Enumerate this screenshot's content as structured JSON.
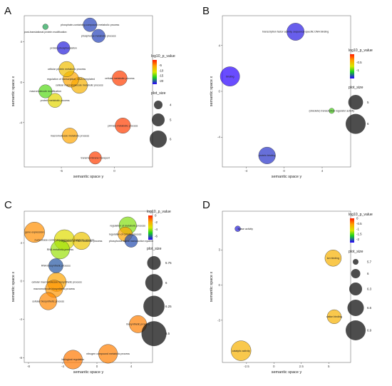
{
  "chart_data": [
    {
      "panel": "A",
      "type": "scatter",
      "xlabel": "semantic space y",
      "ylabel": "semantic space x",
      "xlim": [
        -8.5,
        3.6
      ],
      "ylim": [
        -8.4,
        6.6
      ],
      "xticks": [
        -5,
        0
      ],
      "yticks": [
        -4,
        0,
        4
      ],
      "color_legend": {
        "title": "log10_p_value",
        "ticks": [
          -5,
          -10,
          -15,
          -20
        ],
        "range": [
          -23,
          0
        ]
      },
      "size_legend": {
        "title": "plot_size",
        "ticks": [
          4,
          5,
          6
        ]
      },
      "points": [
        {
          "label": "phosphate-containing compound metabolic process",
          "x": -2.3,
          "y": 5.7,
          "size": 5.2,
          "color": -21,
          "lx": -2.3,
          "ly": 5.7
        },
        {
          "label": "phosphorus metabolic process",
          "x": -1.5,
          "y": 4.6,
          "size": 5.1,
          "color": -21,
          "lx": -1.5,
          "ly": 4.6
        },
        {
          "label": "post-translational protein modification",
          "x": -6.5,
          "y": 5.5,
          "size": 3.3,
          "color": -18,
          "lx": -6.5,
          "ly": 5.0
        },
        {
          "label": "protein phosphorylation",
          "x": -4.8,
          "y": 3.4,
          "size": 5.0,
          "color": -22,
          "lx": -4.8,
          "ly": 3.4
        },
        {
          "label": "cellular protein metabolic process",
          "x": -4.5,
          "y": 1.3,
          "size": 5.6,
          "color": -8,
          "lx": -4.5,
          "ly": 1.3
        },
        {
          "label": "regulation of transcription, DNA-templated",
          "x": -4.1,
          "y": 0.3,
          "size": 5.7,
          "color": -6,
          "lx": -4.1,
          "ly": 0.3
        },
        {
          "label": "cellular macromolecule metabolic process",
          "x": -3.3,
          "y": -0.3,
          "size": 5.8,
          "color": -7,
          "lx": -3.3,
          "ly": -0.3
        },
        {
          "label": "cellular metabolic process",
          "x": 0.5,
          "y": 0.4,
          "size": 5.5,
          "color": -1.5,
          "lx": 0.5,
          "ly": 0.4
        },
        {
          "label": "macromolecule modification",
          "x": -6.5,
          "y": -0.9,
          "size": 5.1,
          "color": -15,
          "lx": -6.5,
          "ly": -0.9
        },
        {
          "label": "protein metabolic process",
          "x": -5.6,
          "y": -1.8,
          "size": 5.3,
          "color": -10,
          "lx": -5.6,
          "ly": -1.8
        },
        {
          "label": "primary metabolic process",
          "x": 0.8,
          "y": -4.3,
          "size": 5.6,
          "color": -1.5,
          "lx": 0.8,
          "ly": -4.3
        },
        {
          "label": "macromolecule metabolic process",
          "x": -4.2,
          "y": -5.3,
          "size": 5.6,
          "color": -6,
          "lx": -4.2,
          "ly": -5.3
        },
        {
          "label": "transmembrane transport",
          "x": -1.8,
          "y": -7.5,
          "size": 4.9,
          "color": -1.5,
          "lx": -1.8,
          "ly": -7.5
        }
      ]
    },
    {
      "panel": "B",
      "type": "scatter",
      "xlabel": "semantic space y",
      "ylabel": "semantic space x",
      "xlim": [
        -6.5,
        7.0
      ],
      "ylim": [
        -6.6,
        6.6
      ],
      "xticks": [
        -4,
        0,
        4
      ],
      "yticks": [
        -4,
        0,
        4
      ],
      "color_legend": {
        "title": "log10_p_value",
        "ticks": [
          -0.5,
          -1.0
        ],
        "range": [
          -1.5,
          0
        ]
      },
      "size_legend": {
        "title": "plot_size",
        "ticks": [
          5,
          6
        ]
      },
      "points": [
        {
          "label": "transcription factor activity, sequence-specific DNA binding",
          "x": 1.2,
          "y": 5.2,
          "size": 5.5,
          "color": -1.45,
          "lx": 1.2,
          "ly": 5.2
        },
        {
          "label": "binding",
          "x": -5.7,
          "y": 1.3,
          "size": 5.9,
          "color": -1.55,
          "lx": -5.7,
          "ly": 1.3
        },
        {
          "label": "(obsolete) transcription regulator activity",
          "x": 5.0,
          "y": -1.7,
          "size": 3.2,
          "color": -1.0,
          "lx": 5.0,
          "ly": -1.7
        },
        {
          "label": "protein binding",
          "x": -1.8,
          "y": -5.6,
          "size": 5.4,
          "color": -1.4,
          "lx": -1.8,
          "ly": -5.6
        }
      ]
    },
    {
      "panel": "C",
      "type": "scatter",
      "xlabel": "semantic space y",
      "ylabel": "semantic space x",
      "xlim": [
        -8.5,
        6.5
      ],
      "ylim": [
        -8.5,
        7.3
      ],
      "xticks": [
        -8,
        -4,
        0,
        4
      ],
      "yticks": [
        -8,
        -4,
        0,
        4
      ],
      "color_legend": {
        "title": "log10_p_value",
        "ticks": [
          0,
          -2,
          -4,
          -6
        ],
        "range": [
          -7,
          0
        ]
      },
      "size_legend": {
        "title": "plot_size",
        "ticks": [
          5.75,
          6.0,
          6.25,
          6.5
        ]
      },
      "points": [
        {
          "label": "gene expression",
          "x": -7.3,
          "y": 5.1,
          "size": 6.2,
          "color": -1.5,
          "lx": -7.3,
          "ly": 5.1
        },
        {
          "label": "regulation of metabolic process",
          "x": 3.6,
          "y": 5.8,
          "size": 6.0,
          "color": -4.2,
          "lx": 3.6,
          "ly": 5.8
        },
        {
          "label": "regulation of cellular process",
          "x": 3.3,
          "y": 4.9,
          "size": 5.8,
          "color": -1.8,
          "lx": 3.3,
          "ly": 4.9
        },
        {
          "label": "phosphorus signal transduction system",
          "x": 4.0,
          "y": 4.2,
          "size": 5.6,
          "color": -6.3,
          "lx": 4.0,
          "ly": 4.2
        },
        {
          "label": "nucleobase-containing compound metabolic process",
          "x": -3.8,
          "y": 4.3,
          "size": 6.2,
          "color": -3.2,
          "lx": -3.8,
          "ly": 4.3
        },
        {
          "label": "regulation of RNA metabolic process",
          "x": -1.8,
          "y": 4.2,
          "size": 6.0,
          "color": -2.6,
          "lx": -1.8,
          "ly": 4.2
        },
        {
          "label": "RNA metabolic process",
          "x": -4.3,
          "y": 3.3,
          "size": 6.1,
          "color": -4.0,
          "lx": -4.3,
          "ly": 3.3
        },
        {
          "label": "RNA biosynthetic process",
          "x": -4.8,
          "y": 1.6,
          "size": 5.8,
          "color": -6.2,
          "lx": -4.8,
          "ly": 1.6
        },
        {
          "label": "cellular macromolecule biosynthetic process",
          "x": -4.7,
          "y": -0.1,
          "size": 6.1,
          "color": -1.8,
          "lx": -4.7,
          "ly": -0.1
        },
        {
          "label": "macromolecule biosynthetic process",
          "x": -5.0,
          "y": -0.8,
          "size": 6.0,
          "color": -1.6,
          "lx": -5.0,
          "ly": -0.8
        },
        {
          "label": "cellular biosynthetic process",
          "x": -5.7,
          "y": -2.1,
          "size": 6.0,
          "color": -1.4,
          "lx": -5.7,
          "ly": -2.1
        },
        {
          "label": "biosynthetic process",
          "x": 4.8,
          "y": -4.5,
          "size": 6.0,
          "color": -1.3,
          "lx": 4.8,
          "ly": -4.5
        },
        {
          "label": "nitrogen compound metabolic process",
          "x": 1.3,
          "y": -7.6,
          "size": 6.1,
          "color": -1.3,
          "lx": 1.3,
          "ly": -7.6
        },
        {
          "label": "biological regulation",
          "x": -2.8,
          "y": -8.2,
          "size": 6.1,
          "color": -1.2,
          "lx": -2.8,
          "ly": -8.2
        }
      ]
    },
    {
      "panel": "D",
      "type": "scatter",
      "xlabel": "semantic space y",
      "ylabel": "semantic space x",
      "xlim": [
        -4.7,
        7.0
      ],
      "ylim": [
        -6.6,
        6.3
      ],
      "xticks": [
        -2.5,
        0.0,
        2.5,
        5.0
      ],
      "yticks": [
        -3,
        0,
        3
      ],
      "color_legend": {
        "title": "log10_p_value",
        "ticks": [
          0.0,
          -0.5,
          -1.0,
          -1.5,
          -2.0
        ],
        "range": [
          -2.3,
          0
        ]
      },
      "size_legend": {
        "title": "plot_size",
        "ticks": [
          5.7,
          6.0,
          6.3,
          6.6,
          6.9
        ]
      },
      "points": [
        {
          "label": "ligase activity",
          "x": -3.3,
          "y": 4.8,
          "size": 5.0,
          "color": -2.2,
          "lx": -2.6,
          "ly": 4.8
        },
        {
          "label": "ion binding",
          "x": 5.4,
          "y": 2.3,
          "size": 6.6,
          "color": -0.7,
          "lx": 5.4,
          "ly": 2.3
        },
        {
          "label": "cation binding",
          "x": 5.5,
          "y": -2.7,
          "size": 6.4,
          "color": -0.7,
          "lx": 5.5,
          "ly": -2.7
        },
        {
          "label": "catalytic activity",
          "x": -3.0,
          "y": -5.6,
          "size": 6.9,
          "color": -0.7,
          "lx": -3.0,
          "ly": -5.6
        }
      ]
    }
  ]
}
